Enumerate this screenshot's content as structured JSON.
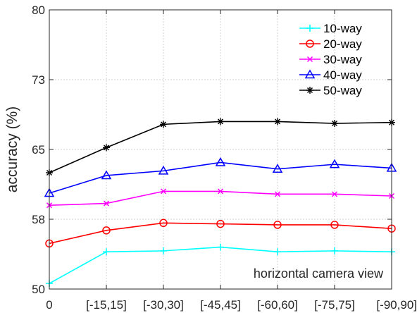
{
  "chart_data": {
    "type": "line",
    "categories": [
      "0",
      "[-15,15]",
      "[-30,30]",
      "[-45,45]",
      "[-60,60]",
      "[-75,75]",
      "[-90,90]"
    ],
    "ylabel": "accuracy (%)",
    "xlabel": "",
    "ylim": [
      50,
      80
    ],
    "yticks": [
      "50",
      "58",
      "65",
      "73",
      "80"
    ],
    "grid": true,
    "legend_placement": "top-right",
    "annotation": "horizontal camera view",
    "series": [
      {
        "name": "10-way",
        "color": "#00ffff",
        "marker": "plus",
        "values": [
          50.6,
          54.0,
          54.1,
          54.5,
          54.0,
          54.1,
          54.0
        ]
      },
      {
        "name": "20-way",
        "color": "#ff0000",
        "marker": "circle",
        "values": [
          54.9,
          56.3,
          57.1,
          57.0,
          56.9,
          56.9,
          56.5
        ]
      },
      {
        "name": "30-way",
        "color": "#ff00ff",
        "marker": "x",
        "values": [
          59.0,
          59.2,
          60.5,
          60.5,
          60.2,
          60.2,
          60.0
        ]
      },
      {
        "name": "40-way",
        "color": "#0000ff",
        "marker": "triangle",
        "values": [
          60.3,
          62.2,
          62.7,
          63.6,
          62.9,
          63.4,
          63.0
        ]
      },
      {
        "name": "50-way",
        "color": "#000000",
        "marker": "star",
        "values": [
          62.5,
          65.2,
          67.7,
          68.0,
          68.0,
          67.8,
          67.9
        ]
      }
    ]
  }
}
